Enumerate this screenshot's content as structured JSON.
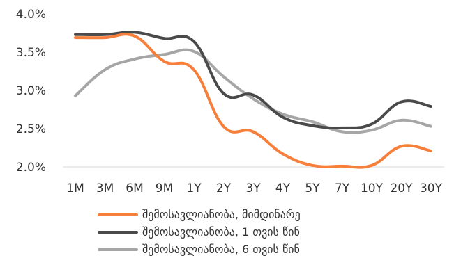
{
  "chart_data": {
    "type": "line",
    "x": [
      "1M",
      "3M",
      "6M",
      "9M",
      "1Y",
      "2Y",
      "3Y",
      "4Y",
      "5Y",
      "7Y",
      "10Y",
      "20Y",
      "30Y"
    ],
    "ylim": [
      2.0,
      4.0
    ],
    "yticks": [
      "2.0%",
      "2.5%",
      "3.0%",
      "3.5%",
      "4.0%"
    ],
    "grid": false,
    "legend_position": "bottom",
    "series": [
      {
        "name": "შემოსავლიანობა, მიმდინარე",
        "color": "#F57F3B",
        "values": [
          3.69,
          3.69,
          3.71,
          3.38,
          3.27,
          2.53,
          2.46,
          2.17,
          2.02,
          2.01,
          2.02,
          2.27,
          2.21
        ]
      },
      {
        "name": "შემოსავლიანობა, 1 თვის წინ",
        "color": "#4A4A4A",
        "values": [
          3.73,
          3.73,
          3.76,
          3.68,
          3.64,
          2.96,
          2.94,
          2.65,
          2.54,
          2.51,
          2.56,
          2.85,
          2.79
        ]
      },
      {
        "name": "შემოსავლიანობა, 6 თვის წინ",
        "color": "#A6A6A6",
        "values": [
          2.93,
          3.27,
          3.41,
          3.47,
          3.51,
          3.18,
          2.89,
          2.69,
          2.59,
          2.46,
          2.48,
          2.61,
          2.53
        ]
      }
    ]
  }
}
